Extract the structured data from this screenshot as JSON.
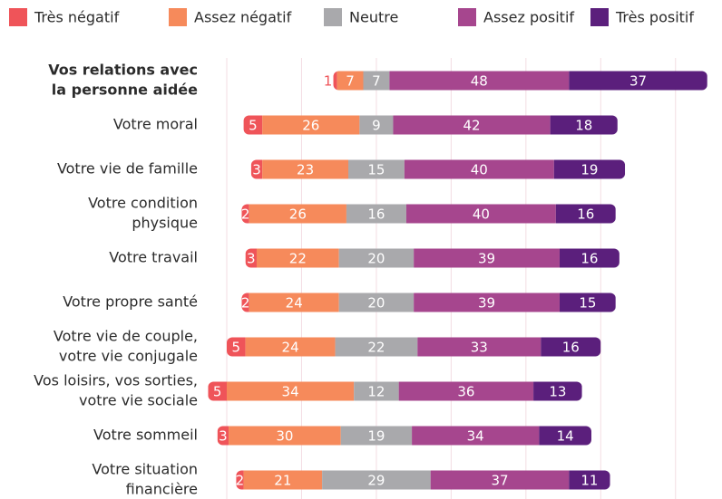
{
  "chart_data": {
    "type": "diverging_bar",
    "categories": [
      [
        "Vos relations avec",
        "la personne aidée"
      ],
      [
        "Votre moral"
      ],
      [
        "Votre vie de famille"
      ],
      [
        "Votre condition",
        "physique"
      ],
      [
        "Votre travail"
      ],
      [
        "Votre propre santé"
      ],
      [
        "Votre vie de couple,",
        "votre vie conjugale"
      ],
      [
        "Vos loisirs, vos sorties,",
        "votre vie sociale"
      ],
      [
        "Votre sommeil"
      ],
      [
        "Votre situation",
        "financière"
      ]
    ],
    "bold_category": 0,
    "series": [
      {
        "name": "Très négatif",
        "color": "#ef5459",
        "side": "negative",
        "values": [
          1,
          5,
          3,
          2,
          3,
          2,
          5,
          5,
          3,
          2
        ]
      },
      {
        "name": "Assez négatif",
        "color": "#f68a5b",
        "side": "negative",
        "values": [
          7,
          26,
          23,
          26,
          22,
          24,
          24,
          34,
          30,
          21
        ]
      },
      {
        "name": "Neutre",
        "color": "#a9a9ac",
        "side": "neutral",
        "values": [
          7,
          9,
          15,
          16,
          20,
          20,
          22,
          12,
          19,
          29
        ]
      },
      {
        "name": "Assez positif",
        "color": "#a6468e",
        "side": "positive",
        "values": [
          48,
          42,
          40,
          40,
          39,
          39,
          33,
          36,
          34,
          37
        ]
      },
      {
        "name": "Très positif",
        "color": "#5b1f7c",
        "side": "positive",
        "values": [
          37,
          18,
          19,
          16,
          16,
          15,
          16,
          13,
          14,
          11
        ]
      }
    ],
    "xlim": [
      -40,
      90
    ],
    "xticks": [
      -40,
      -20,
      0,
      20,
      40,
      60,
      80
    ],
    "grid": true
  }
}
